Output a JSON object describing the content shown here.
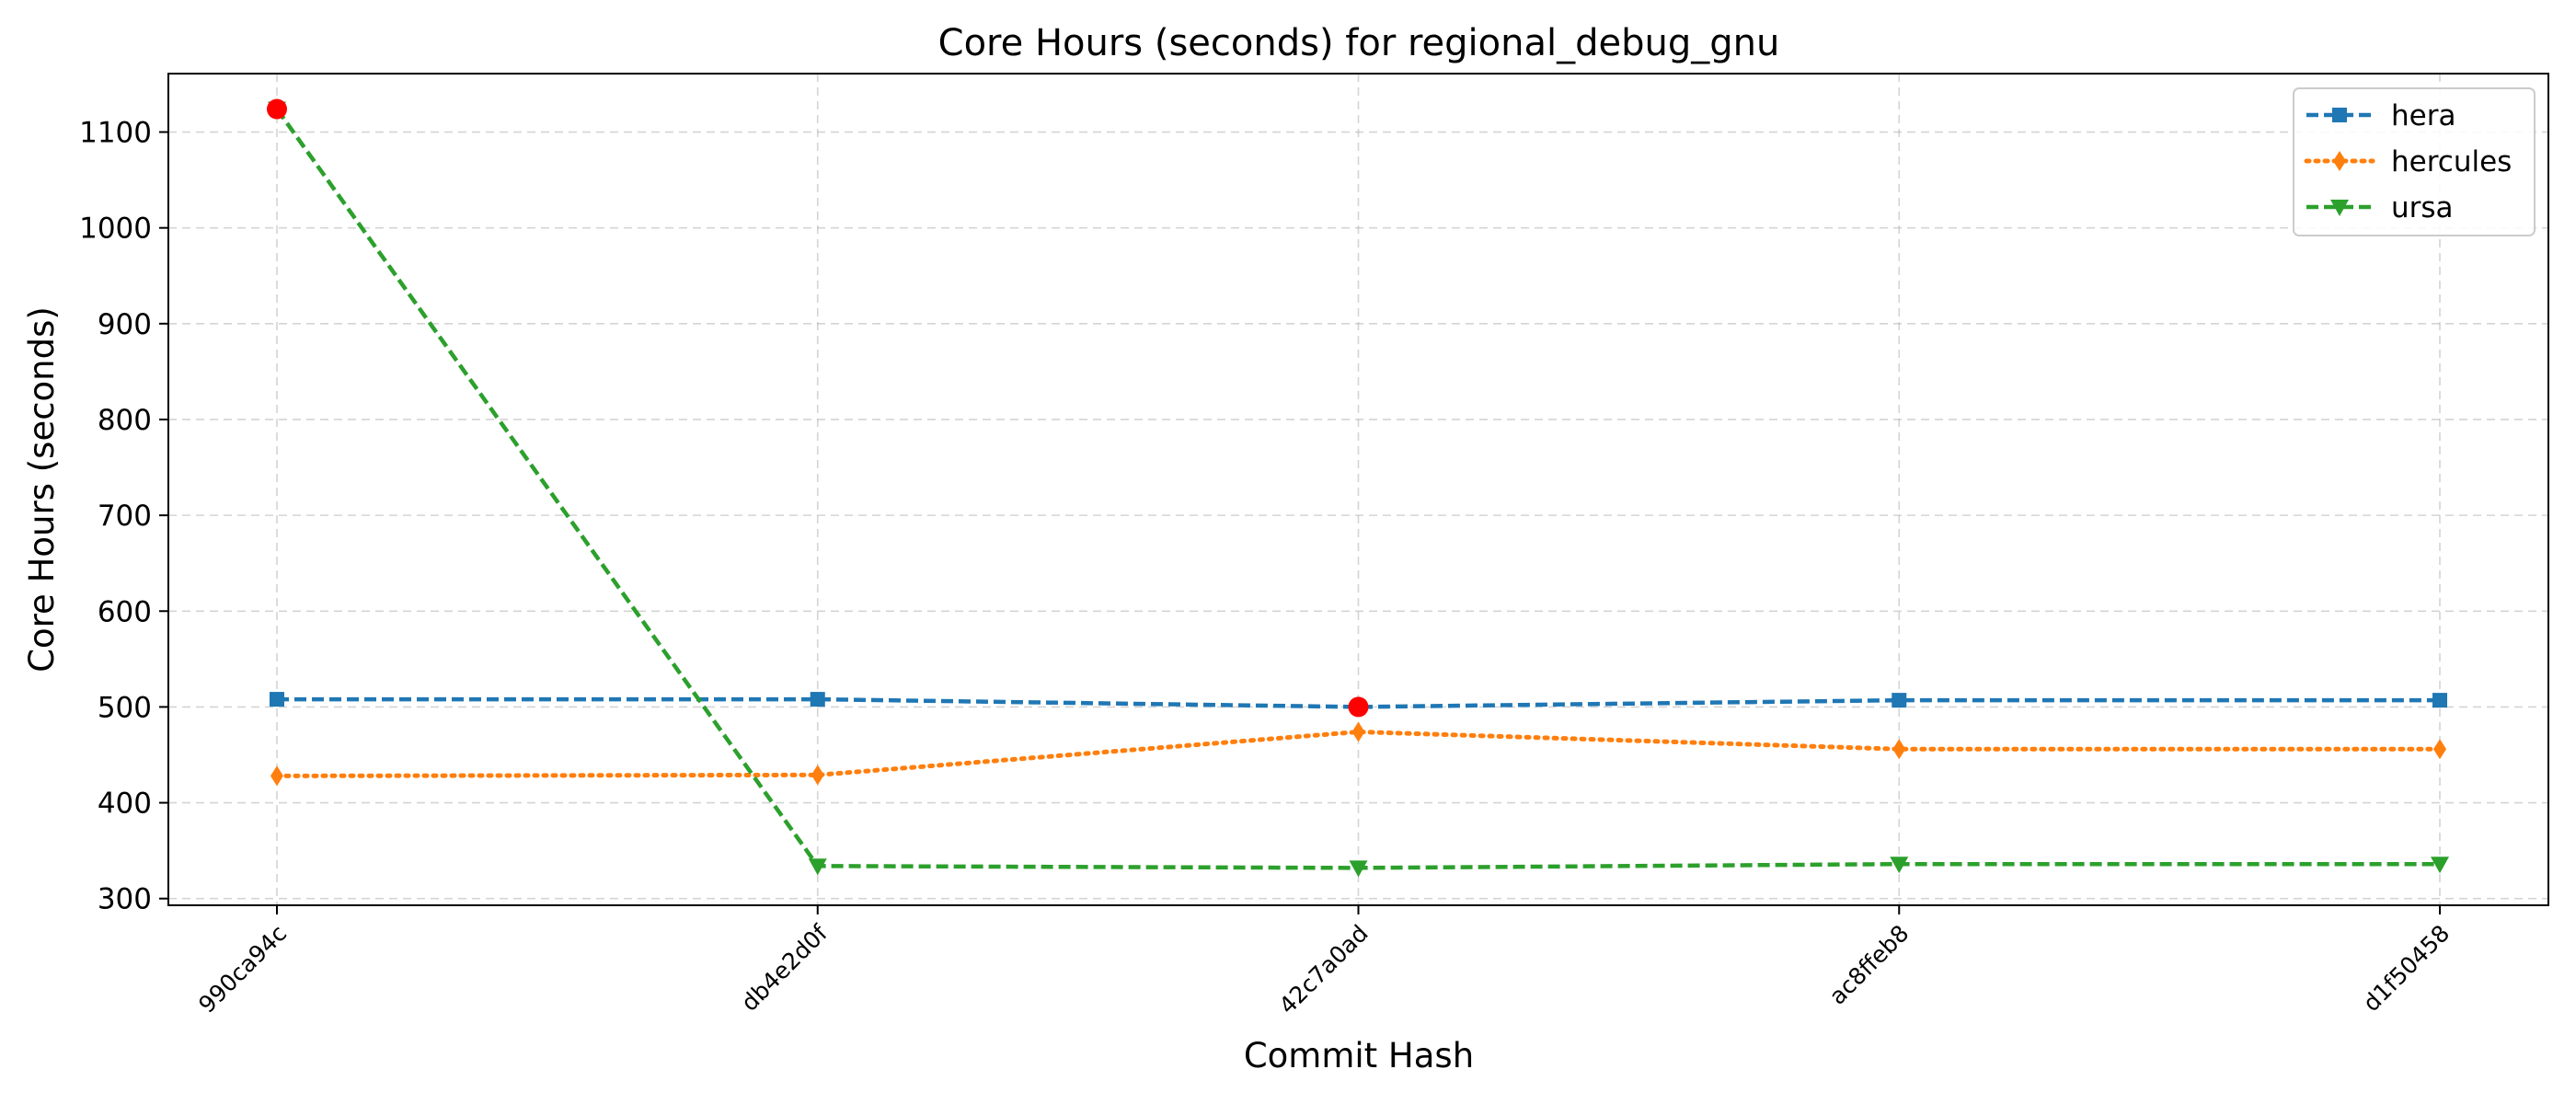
{
  "chart_data": {
    "type": "line",
    "title": "Core Hours (seconds) for regional_debug_gnu",
    "xlabel": "Commit Hash",
    "ylabel": "Core Hours (seconds)",
    "categories": [
      "990ca94c",
      "db4e2d0f",
      "42c7a0ad",
      "ac8ffeb8",
      "d1f50458"
    ],
    "ylim": [
      293,
      1161
    ],
    "yticks": [
      300,
      400,
      500,
      600,
      700,
      800,
      900,
      1000,
      1100
    ],
    "grid": true,
    "legend_position": "top-right",
    "series": [
      {
        "name": "hera",
        "values": [
          508,
          508,
          500,
          507,
          507
        ],
        "color": "#1f77b4",
        "marker": "square",
        "linestyle": "dashed"
      },
      {
        "name": "hercules",
        "values": [
          428,
          429,
          474,
          456,
          456
        ],
        "color": "#ff7f0e",
        "marker": "thin-diamond",
        "linestyle": "dotted"
      },
      {
        "name": "ursa",
        "values": [
          1124,
          334,
          332,
          336,
          336
        ],
        "color": "#2ca02c",
        "marker": "triangle-down",
        "linestyle": "dashed"
      }
    ],
    "highlights": [
      {
        "category": "990ca94c",
        "value": 1124,
        "color": "#ff0000"
      },
      {
        "category": "42c7a0ad",
        "value": 500,
        "color": "#ff0000"
      }
    ]
  }
}
